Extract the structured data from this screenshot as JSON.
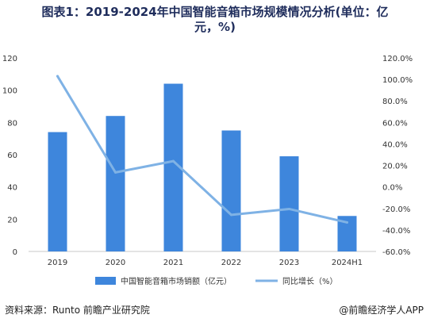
{
  "title_line1": "图表1：2019-2024年中国智能音箱市场规模情况分析(单位：亿",
  "title_line2": "元，%)",
  "source": "资料来源：Runto 前瞻产业研究院",
  "brand": "@前瞻经济学人APP",
  "colors": {
    "bar": "#3e86dc",
    "line": "#7fb2e5",
    "grid": "#e6e6e6",
    "axis": "#c8c8c8"
  },
  "chart_data": {
    "type": "bar",
    "categories": [
      "2019",
      "2020",
      "2021",
      "2022",
      "2023",
      "2024H1"
    ],
    "series": [
      {
        "name": "中国智能音箱市场销额（亿元）",
        "type": "bar",
        "axis": "left",
        "values": [
          74,
          84,
          104,
          75,
          59,
          22
        ]
      },
      {
        "name": "同比增长（%）",
        "type": "line",
        "axis": "right",
        "values": [
          103.0,
          13.5,
          24.0,
          -26.0,
          -20.5,
          -33.0
        ]
      }
    ],
    "ylim_left": [
      0,
      120
    ],
    "yticks_left": [
      "0",
      "20",
      "40",
      "60",
      "80",
      "100",
      "120"
    ],
    "ylim_right": [
      -60,
      120
    ],
    "yticks_right": [
      "-60.0%",
      "-40.0%",
      "-20.0%",
      "0.0%",
      "20.0%",
      "40.0%",
      "60.0%",
      "80.0%",
      "100.0%",
      "120.0%"
    ],
    "grid": false,
    "legend_position": "bottom"
  }
}
